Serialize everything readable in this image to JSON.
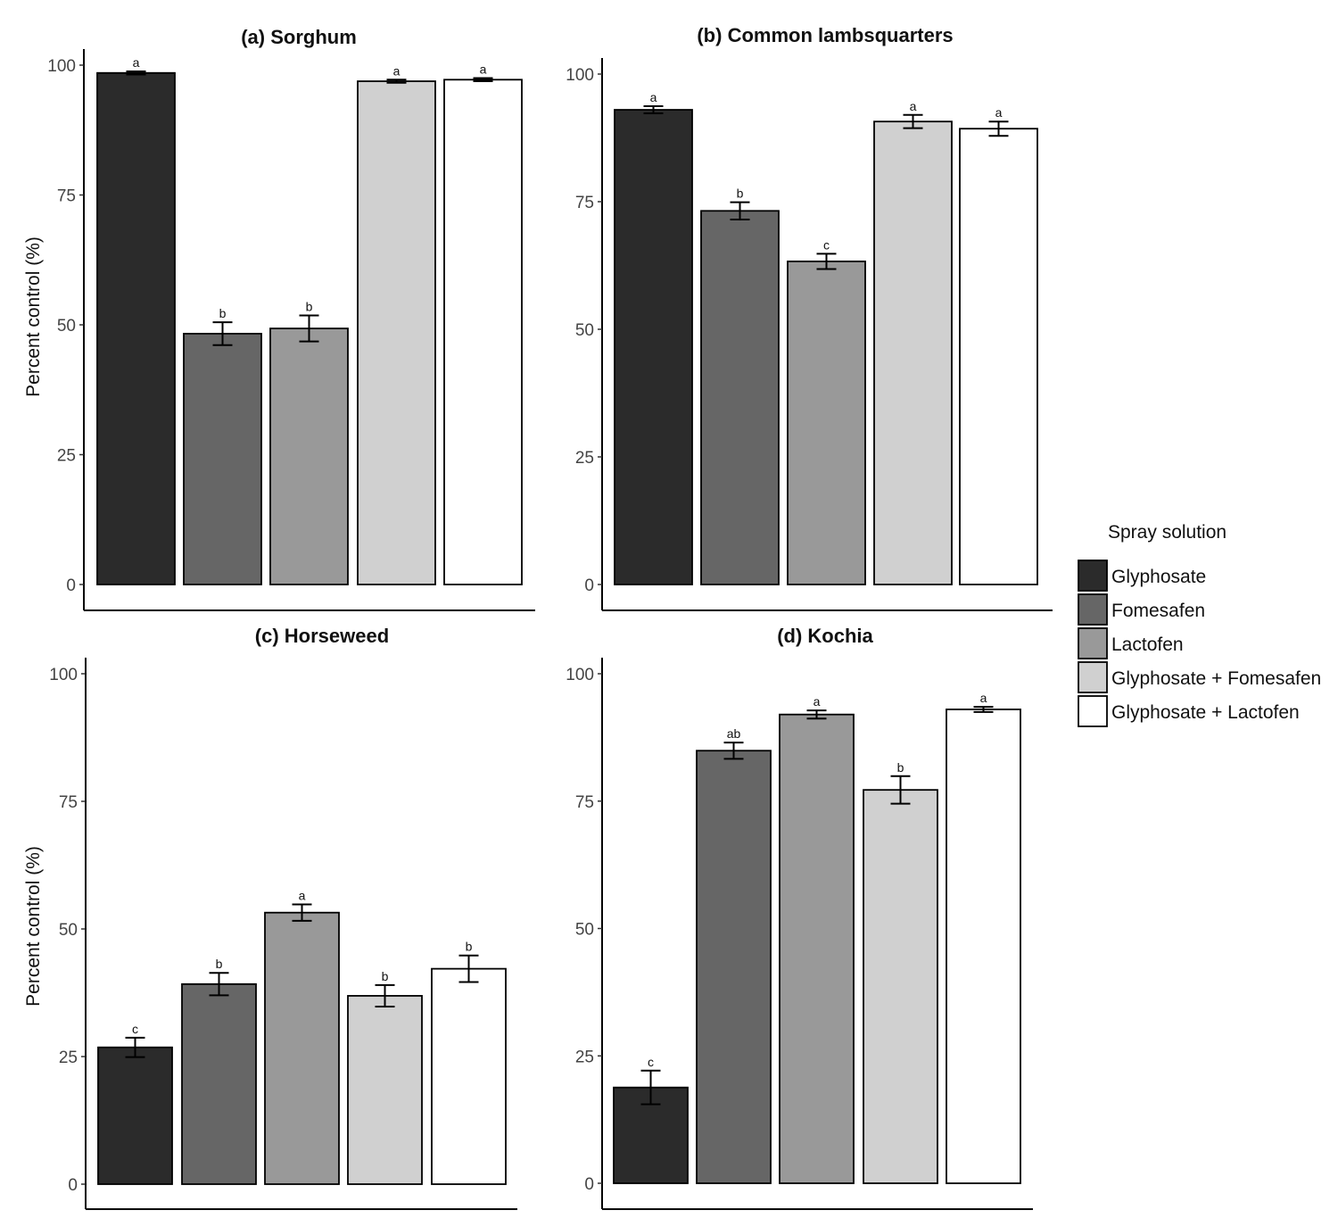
{
  "chart_data": [
    {
      "type": "bar",
      "title": "(a) Sorghum",
      "ylabel": "Percent control (%)",
      "xlabel": "",
      "ylim": [
        0,
        100
      ],
      "yticks": [
        0,
        25,
        50,
        75,
        100
      ],
      "categories": [
        "Glyphosate",
        "Fomesafen",
        "Lactofen",
        "Glyphosate + Fomesafen",
        "Glyphosate + Lactofen"
      ],
      "values": [
        98.5,
        48.3,
        49.3,
        96.9,
        97.2
      ],
      "errors": [
        0.3,
        2.2,
        2.5,
        0.3,
        0.3
      ],
      "letters": [
        "a",
        "b",
        "b",
        "a",
        "a"
      ]
    },
    {
      "type": "bar",
      "title": "(b) Common lambsquarters",
      "ylabel": "",
      "xlabel": "",
      "ylim": [
        0,
        100
      ],
      "yticks": [
        0,
        25,
        50,
        75,
        100
      ],
      "categories": [
        "Glyphosate",
        "Fomesafen",
        "Lactofen",
        "Glyphosate + Fomesafen",
        "Glyphosate + Lactofen"
      ],
      "values": [
        93.0,
        73.2,
        63.3,
        90.7,
        89.3
      ],
      "errors": [
        0.7,
        1.7,
        1.5,
        1.3,
        1.4
      ],
      "letters": [
        "a",
        "b",
        "c",
        "a",
        "a"
      ]
    },
    {
      "type": "bar",
      "title": "(c) Horseweed",
      "ylabel": "Percent control (%)",
      "xlabel": "",
      "ylim": [
        0,
        100
      ],
      "yticks": [
        0,
        25,
        50,
        75,
        100
      ],
      "categories": [
        "Glyphosate",
        "Fomesafen",
        "Lactofen",
        "Glyphosate + Fomesafen",
        "Glyphosate + Lactofen"
      ],
      "values": [
        26.8,
        39.2,
        53.2,
        36.9,
        42.2
      ],
      "errors": [
        1.9,
        2.2,
        1.6,
        2.1,
        2.6
      ],
      "letters": [
        "c",
        "b",
        "a",
        "b",
        "b"
      ]
    },
    {
      "type": "bar",
      "title": "(d) Kochia",
      "ylabel": "",
      "xlabel": "",
      "ylim": [
        0,
        100
      ],
      "yticks": [
        0,
        25,
        50,
        75,
        100
      ],
      "categories": [
        "Glyphosate",
        "Fomesafen",
        "Lactofen",
        "Glyphosate + Fomesafen",
        "Glyphosate + Lactofen"
      ],
      "values": [
        18.8,
        84.9,
        92.0,
        77.2,
        93.0
      ],
      "errors": [
        3.3,
        1.6,
        0.8,
        2.7,
        0.5
      ],
      "letters": [
        "c",
        "ab",
        "a",
        "b",
        "a"
      ]
    }
  ],
  "legend": {
    "title": "Spray solution",
    "items": [
      {
        "label": "Glyphosate",
        "color": "#2b2b2b"
      },
      {
        "label": "Fomesafen",
        "color": "#666666"
      },
      {
        "label": "Lactofen",
        "color": "#999999"
      },
      {
        "label": "Glyphosate + Fomesafen",
        "color": "#d0d0d0"
      },
      {
        "label": "Glyphosate + Lactofen",
        "color": "#ffffff"
      }
    ]
  }
}
